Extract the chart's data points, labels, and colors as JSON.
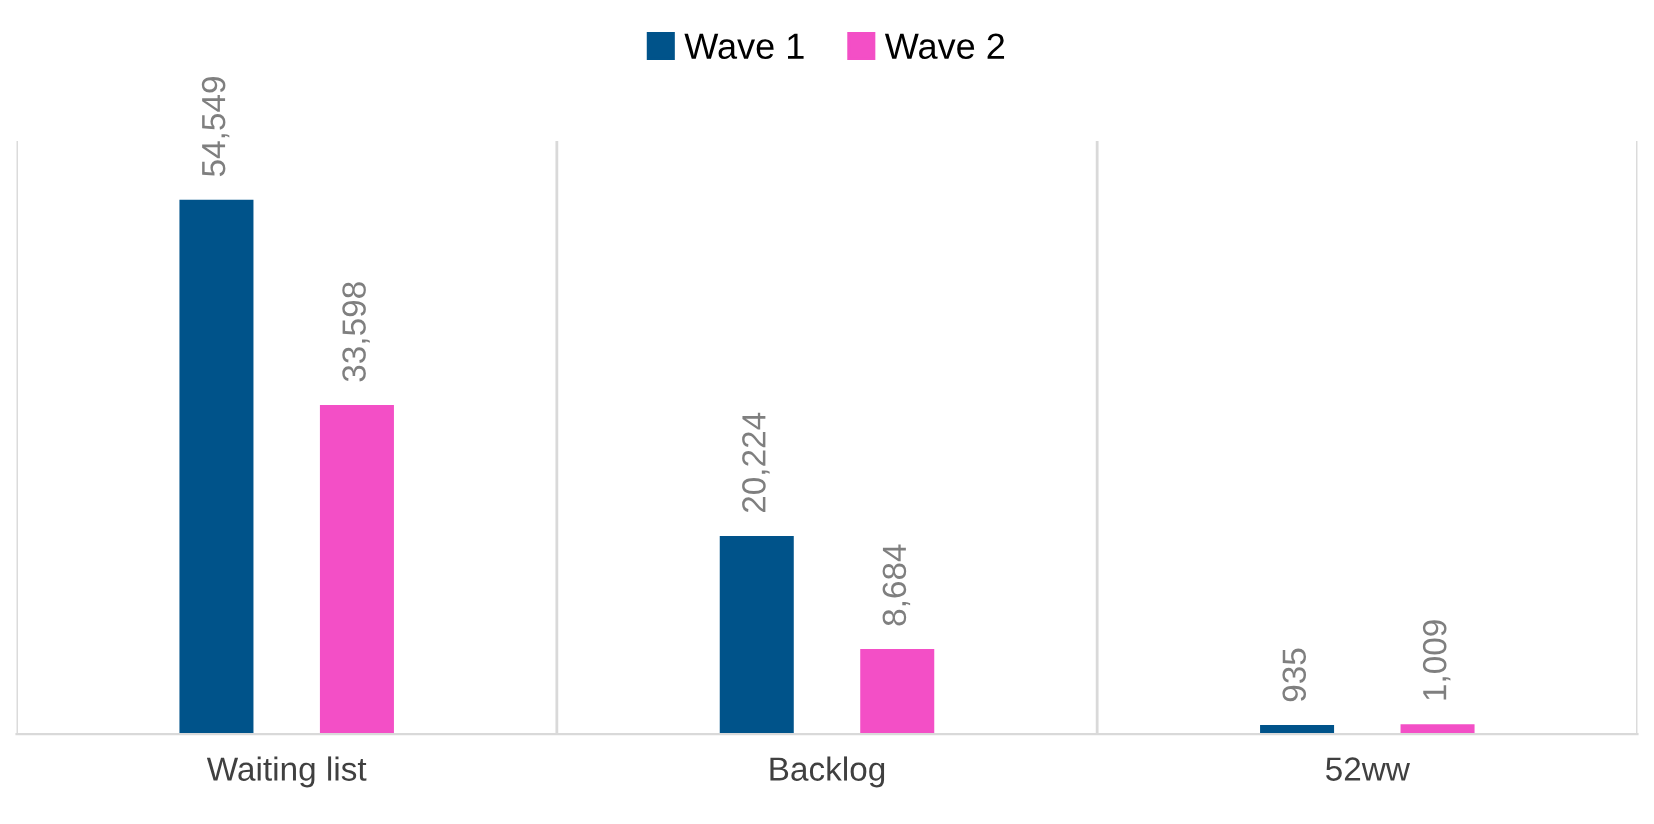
{
  "chart_data": {
    "type": "bar",
    "categories": [
      "Waiting list",
      "Backlog",
      "52ww"
    ],
    "series": [
      {
        "name": "Wave 1",
        "color": "#00538a",
        "values": [
          54549,
          20224,
          935
        ],
        "value_labels": [
          "54,549",
          "20,224",
          "935"
        ]
      },
      {
        "name": "Wave 2",
        "color": "#f34fc6",
        "values": [
          33598,
          8684,
          1009
        ],
        "value_labels": [
          "33,598",
          "8,684",
          "1,009"
        ]
      }
    ],
    "grid": "x",
    "legend": "top"
  }
}
